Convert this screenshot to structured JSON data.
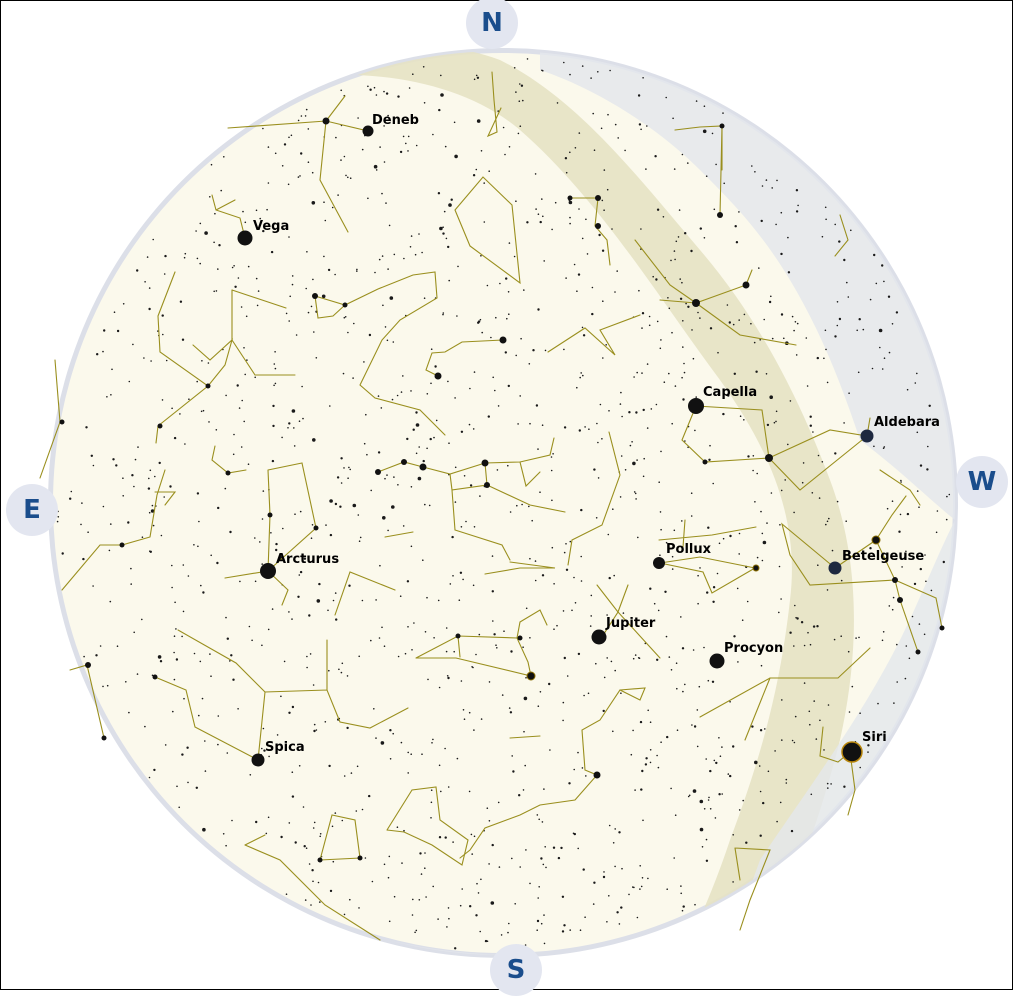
{
  "compass": {
    "north": "N",
    "south": "S",
    "east": "E",
    "west": "W"
  },
  "colors": {
    "sky": "#fbf9ec",
    "milky_way": "#e6e2c4",
    "horizon_haze": "#e4e7ec",
    "rim": "#dcdfe8",
    "constellation_line": "#9a8f1e",
    "star": "#111111",
    "compass_text": "#1a4d8c",
    "compass_bg": "#e3e6f0"
  },
  "objects": [
    {
      "name": "Deneb",
      "kind": "star"
    },
    {
      "name": "Vega",
      "kind": "star"
    },
    {
      "name": "Capella",
      "kind": "star"
    },
    {
      "name": "Aldebara",
      "kind": "star"
    },
    {
      "name": "Arcturus",
      "kind": "star"
    },
    {
      "name": "Pollux",
      "kind": "star"
    },
    {
      "name": "Betelgeuse",
      "kind": "star"
    },
    {
      "name": "Jupiter",
      "kind": "planet"
    },
    {
      "name": "Procyon",
      "kind": "star"
    },
    {
      "name": "Spica",
      "kind": "star"
    },
    {
      "name": "Siri",
      "kind": "star"
    }
  ]
}
